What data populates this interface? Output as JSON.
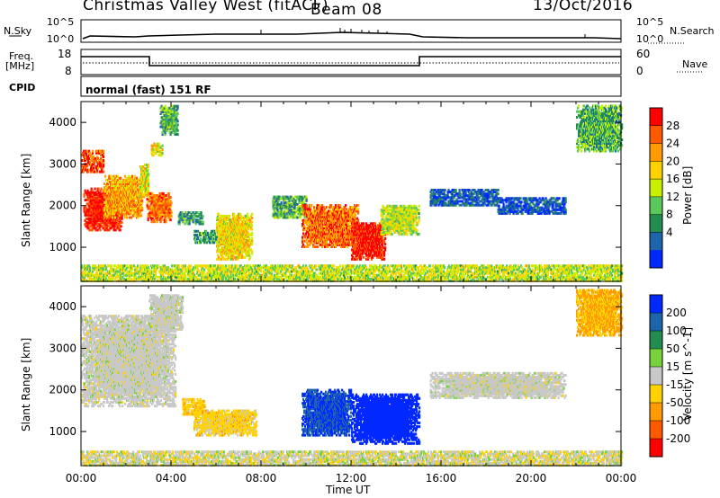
{
  "header": {
    "station": "Christmas Valley West (fitACF)",
    "beam": "Beam 08",
    "date": "13/Oct/2016"
  },
  "top_panel": {
    "left_label": "N.Sky",
    "right_label": "N.Search",
    "left_ticks": [
      "10^5",
      "10^0"
    ],
    "right_ticks": [
      "10^5",
      "10^0"
    ]
  },
  "freq_panel": {
    "left_label_1": "Freq.",
    "left_label_2": "[MHz]",
    "left_ticks": [
      "18",
      "8"
    ],
    "right_label": "Nave",
    "right_ticks": [
      "60",
      "0"
    ]
  },
  "cpid_panel": {
    "label": "CPID",
    "mode": "normal (fast) 151 RF"
  },
  "time_axis": {
    "ticks": [
      "00:00",
      "04:00",
      "08:00",
      "12:00",
      "16:00",
      "20:00",
      "00:00"
    ],
    "label": "Time UT"
  },
  "chart_data": [
    {
      "type": "heatmap",
      "title": "",
      "ylabel": "Slant Range [km]",
      "xlabel": "",
      "x_range_hours": [
        0,
        24
      ],
      "ylim": [
        180,
        4500
      ],
      "yticks": [
        "4000",
        "3000",
        "2000",
        "1000"
      ],
      "colorbar": {
        "label": "Power [dB]",
        "ticks": [
          "28",
          "24",
          "20",
          "16",
          "12",
          "8",
          "4"
        ],
        "colors": [
          "#ff0000",
          "#ff5a00",
          "#ff9a00",
          "#ffd200",
          "#c8f000",
          "#5ac85a",
          "#238c50",
          "#1e64aa",
          "#0028ff"
        ]
      },
      "regions": [
        {
          "t0": 0.0,
          "t1": 1.0,
          "r0": 2800,
          "r1": 3300,
          "level": 0.85
        },
        {
          "t0": 0.1,
          "t1": 1.8,
          "r0": 1400,
          "r1": 2400,
          "level": 0.95
        },
        {
          "t0": 1.0,
          "t1": 2.7,
          "r0": 1700,
          "r1": 2700,
          "level": 0.7
        },
        {
          "t0": 2.6,
          "t1": 3.0,
          "r0": 2200,
          "r1": 3000,
          "level": 0.55
        },
        {
          "t0": 2.9,
          "t1": 4.0,
          "r0": 1600,
          "r1": 2300,
          "level": 0.8
        },
        {
          "t0": 3.1,
          "t1": 3.6,
          "r0": 3200,
          "r1": 3500,
          "level": 0.6
        },
        {
          "t0": 3.5,
          "t1": 4.3,
          "r0": 3700,
          "r1": 4400,
          "level": 0.35
        },
        {
          "t0": 4.3,
          "t1": 5.4,
          "r0": 1550,
          "r1": 1850,
          "level": 0.3
        },
        {
          "t0": 5.0,
          "t1": 6.3,
          "r0": 1100,
          "r1": 1400,
          "level": 0.3
        },
        {
          "t0": 6.0,
          "t1": 7.6,
          "r0": 700,
          "r1": 1800,
          "level": 0.6
        },
        {
          "t0": 8.5,
          "t1": 10.0,
          "r0": 1700,
          "r1": 2200,
          "level": 0.35
        },
        {
          "t0": 9.8,
          "t1": 12.3,
          "r0": 1000,
          "r1": 2000,
          "level": 0.8
        },
        {
          "t0": 12.0,
          "t1": 13.5,
          "r0": 700,
          "r1": 1600,
          "level": 0.95
        },
        {
          "t0": 13.3,
          "t1": 15.0,
          "r0": 1300,
          "r1": 2000,
          "level": 0.5
        },
        {
          "t0": 15.5,
          "t1": 18.5,
          "r0": 2000,
          "r1": 2400,
          "level": 0.15
        },
        {
          "t0": 18.5,
          "t1": 21.5,
          "r0": 1800,
          "r1": 2200,
          "level": 0.12
        },
        {
          "t0": 22.0,
          "t1": 24.0,
          "r0": 3300,
          "r1": 4400,
          "level": 0.35
        },
        {
          "t0": 0.0,
          "t1": 24.0,
          "r0": 180,
          "r1": 550,
          "level": 0.5
        }
      ]
    },
    {
      "type": "heatmap",
      "title": "",
      "ylabel": "Slant Range [km]",
      "xlabel": "Time UT",
      "x_range_hours": [
        0,
        24
      ],
      "ylim": [
        180,
        4500
      ],
      "yticks": [
        "4000",
        "3000",
        "2000",
        "1000"
      ],
      "colorbar": {
        "label": "Velocity [m s^-1]",
        "ticks": [
          "200",
          "100",
          "50",
          "15",
          "-15",
          "-50",
          "-100",
          "-200"
        ],
        "colors": [
          "#0028ff",
          "#1e64aa",
          "#238c50",
          "#78d23c",
          "#c8c8c8",
          "#ffd200",
          "#ff9a00",
          "#ff5a00",
          "#ff0000"
        ]
      },
      "regions": [
        {
          "t0": 0.0,
          "t1": 4.2,
          "r0": 1600,
          "r1": 3800,
          "level": "ground"
        },
        {
          "t0": 3.0,
          "t1": 4.5,
          "r0": 3400,
          "r1": 4300,
          "level": "ground"
        },
        {
          "t0": 4.5,
          "t1": 5.5,
          "r0": 1400,
          "r1": 1800,
          "level": -60
        },
        {
          "t0": 5.0,
          "t1": 7.8,
          "r0": 900,
          "r1": 1500,
          "level": -50
        },
        {
          "t0": 9.8,
          "t1": 12.0,
          "r0": 900,
          "r1": 2000,
          "level": 150
        },
        {
          "t0": 12.0,
          "t1": 15.0,
          "r0": 700,
          "r1": 1900,
          "level": 180
        },
        {
          "t0": 15.5,
          "t1": 21.5,
          "r0": 1800,
          "r1": 2400,
          "level": "ground"
        },
        {
          "t0": 22.0,
          "t1": 24.0,
          "r0": 3300,
          "r1": 4400,
          "level": -80
        },
        {
          "t0": 0.0,
          "t1": 24.0,
          "r0": 180,
          "r1": 500,
          "level": -20
        }
      ]
    }
  ]
}
